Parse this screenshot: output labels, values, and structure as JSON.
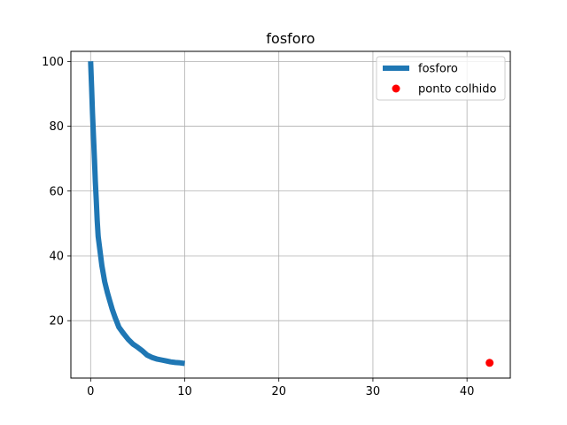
{
  "chart_data": {
    "type": "line",
    "title": "fosforo",
    "xlabel": "",
    "ylabel": "",
    "xlim": [
      -2.1,
      44.6
    ],
    "ylim": [
      2.3,
      103.1
    ],
    "xticks": [
      0,
      10,
      20,
      30,
      40
    ],
    "yticks": [
      20,
      40,
      60,
      80,
      100
    ],
    "grid": true,
    "legend_position": "top-right",
    "series": [
      {
        "name": "fosforo",
        "type": "line",
        "color": "#1f77b4",
        "x": [
          0,
          0.1,
          0.2,
          0.3,
          0.4,
          0.5,
          0.6,
          0.7,
          0.8,
          1.0,
          1.2,
          1.5,
          1.8,
          2.0,
          2.3,
          2.6,
          3.0,
          3.5,
          4.0,
          4.5,
          5.0,
          5.5,
          6.0,
          6.5,
          7.0,
          7.5,
          8.0,
          8.5,
          9.0,
          9.5,
          10.0
        ],
        "y": [
          100,
          92,
          84,
          77,
          70,
          63,
          57,
          51,
          46,
          41.5,
          37,
          32,
          28.5,
          26.5,
          23.5,
          21,
          18,
          16,
          14.2,
          12.8,
          11.8,
          10.7,
          9.4,
          8.7,
          8.2,
          7.9,
          7.6,
          7.3,
          7.1,
          7.0,
          6.8
        ]
      },
      {
        "name": "ponto colhido",
        "type": "scatter",
        "color": "#ff0000",
        "x": [
          42.4
        ],
        "y": [
          7.0
        ]
      }
    ]
  }
}
